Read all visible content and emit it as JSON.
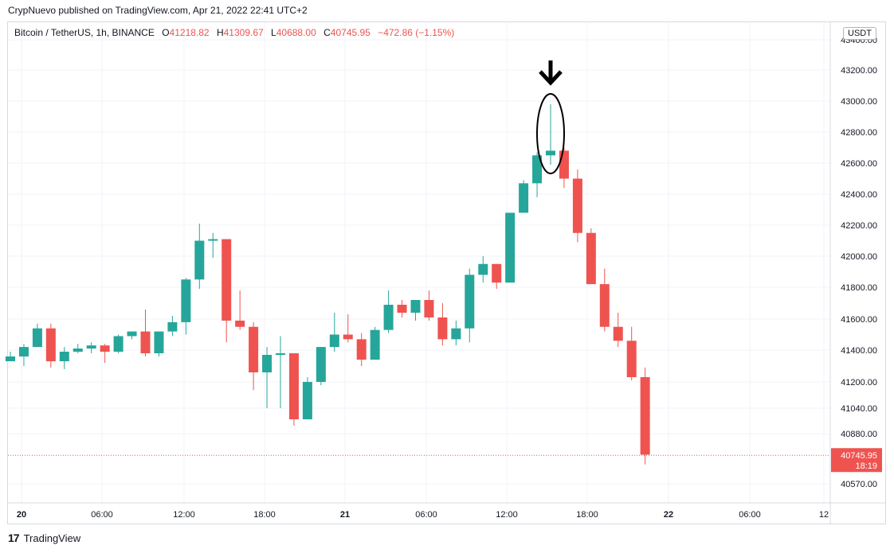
{
  "header": {
    "attribution": "CrypNuevo published on TradingView.com, Apr 21, 2022 22:41 UTC+2"
  },
  "symbol": {
    "name": "Bitcoin / TetherUS, 1h, BINANCE",
    "open_label": "O",
    "open": "41218.82",
    "high_label": "H",
    "high": "41309.67",
    "low_label": "L",
    "low": "40688.00",
    "close_label": "C",
    "close": "40745.95",
    "change": "−472.86 (−1.15%)"
  },
  "currency": "USDT",
  "price_label": {
    "price": "40745.95",
    "countdown": "18:19"
  },
  "footer": {
    "logo_text": "TradingView"
  },
  "colors": {
    "up": "#26a69a",
    "down": "#ef5350",
    "grid": "#f0f3fa",
    "text": "#131722"
  },
  "chart_data": {
    "type": "candlestick",
    "y_ticks": [
      "43400.00",
      "43200.00",
      "43000.00",
      "42800.00",
      "42600.00",
      "42400.00",
      "42200.00",
      "42000.00",
      "41800.00",
      "41600.00",
      "41400.00",
      "41200.00",
      "41040.00",
      "40880.00",
      "40570.00"
    ],
    "x_ticks": [
      "20",
      "06:00",
      "12:00",
      "18:00",
      "21",
      "06:00",
      "12:00",
      "18:00",
      "22",
      "06:00",
      "12"
    ],
    "candles": [
      {
        "o": 41330,
        "h": 41390,
        "l": 41330,
        "c": 41360
      },
      {
        "o": 41360,
        "h": 41440,
        "l": 41300,
        "c": 41420
      },
      {
        "o": 41420,
        "h": 41570,
        "l": 41430,
        "c": 41540
      },
      {
        "o": 41540,
        "h": 41570,
        "l": 41290,
        "c": 41330
      },
      {
        "o": 41330,
        "h": 41420,
        "l": 41280,
        "c": 41390
      },
      {
        "o": 41390,
        "h": 41440,
        "l": 41380,
        "c": 41410
      },
      {
        "o": 41410,
        "h": 41450,
        "l": 41380,
        "c": 41430
      },
      {
        "o": 41430,
        "h": 41440,
        "l": 41320,
        "c": 41390
      },
      {
        "o": 41390,
        "h": 41500,
        "l": 41380,
        "c": 41490
      },
      {
        "o": 41490,
        "h": 41520,
        "l": 41470,
        "c": 41520
      },
      {
        "o": 41520,
        "h": 41660,
        "l": 41360,
        "c": 41380
      },
      {
        "o": 41380,
        "h": 41520,
        "l": 41360,
        "c": 41520
      },
      {
        "o": 41520,
        "h": 41620,
        "l": 41490,
        "c": 41580
      },
      {
        "o": 41580,
        "h": 41860,
        "l": 41500,
        "c": 41850
      },
      {
        "o": 41850,
        "h": 42210,
        "l": 41790,
        "c": 42100
      },
      {
        "o": 42100,
        "h": 42150,
        "l": 41990,
        "c": 42110
      },
      {
        "o": 42110,
        "h": 42110,
        "l": 41450,
        "c": 41590
      },
      {
        "o": 41590,
        "h": 41780,
        "l": 41530,
        "c": 41550
      },
      {
        "o": 41550,
        "h": 41580,
        "l": 41150,
        "c": 41260
      },
      {
        "o": 41260,
        "h": 41420,
        "l": 41040,
        "c": 41370
      },
      {
        "o": 41370,
        "h": 41490,
        "l": 41040,
        "c": 41380
      },
      {
        "o": 41380,
        "h": 41380,
        "l": 40930,
        "c": 40970
      },
      {
        "o": 40970,
        "h": 41230,
        "l": 40990,
        "c": 41200
      },
      {
        "o": 41200,
        "h": 41420,
        "l": 41180,
        "c": 41420
      },
      {
        "o": 41420,
        "h": 41640,
        "l": 41390,
        "c": 41500
      },
      {
        "o": 41500,
        "h": 41630,
        "l": 41450,
        "c": 41470
      },
      {
        "o": 41470,
        "h": 41510,
        "l": 41300,
        "c": 41340
      },
      {
        "o": 41340,
        "h": 41550,
        "l": 41350,
        "c": 41530
      },
      {
        "o": 41530,
        "h": 41780,
        "l": 41510,
        "c": 41690
      },
      {
        "o": 41690,
        "h": 41720,
        "l": 41610,
        "c": 41640
      },
      {
        "o": 41640,
        "h": 41700,
        "l": 41590,
        "c": 41720
      },
      {
        "o": 41720,
        "h": 41780,
        "l": 41590,
        "c": 41610
      },
      {
        "o": 41610,
        "h": 41700,
        "l": 41430,
        "c": 41470
      },
      {
        "o": 41470,
        "h": 41590,
        "l": 41430,
        "c": 41540
      },
      {
        "o": 41540,
        "h": 41920,
        "l": 41450,
        "c": 41880
      },
      {
        "o": 41880,
        "h": 42000,
        "l": 41830,
        "c": 41950
      },
      {
        "o": 41950,
        "h": 41950,
        "l": 41790,
        "c": 41830
      },
      {
        "o": 41830,
        "h": 42270,
        "l": 41830,
        "c": 42280
      },
      {
        "o": 42280,
        "h": 42490,
        "l": 42280,
        "c": 42470
      },
      {
        "o": 42470,
        "h": 42670,
        "l": 42380,
        "c": 42650
      },
      {
        "o": 42650,
        "h": 42980,
        "l": 42590,
        "c": 42680
      },
      {
        "o": 42680,
        "h": 42700,
        "l": 42440,
        "c": 42500
      },
      {
        "o": 42500,
        "h": 42560,
        "l": 42090,
        "c": 42150
      },
      {
        "o": 42150,
        "h": 42180,
        "l": 41840,
        "c": 41820
      },
      {
        "o": 41820,
        "h": 41920,
        "l": 41520,
        "c": 41550
      },
      {
        "o": 41550,
        "h": 41640,
        "l": 41420,
        "c": 41460
      },
      {
        "o": 41460,
        "h": 41550,
        "l": 41210,
        "c": 41230
      },
      {
        "o": 41230,
        "h": 41290,
        "l": 40690,
        "c": 40750
      }
    ]
  }
}
